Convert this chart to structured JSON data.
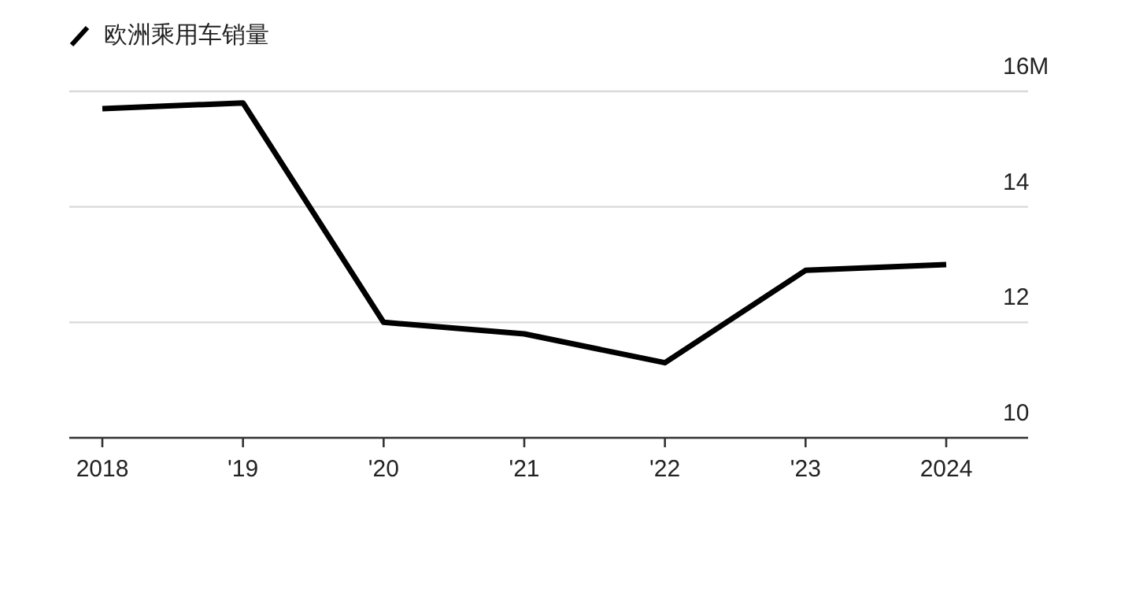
{
  "chart_data": {
    "type": "line",
    "categories": [
      "2018",
      "'19",
      "'20",
      "'21",
      "'22",
      "'23",
      "2024"
    ],
    "series": [
      {
        "name": "欧洲乘用车销量",
        "color": "#000000",
        "values": [
          15.7,
          15.8,
          12.0,
          11.8,
          11.3,
          12.9,
          13.0
        ]
      }
    ],
    "ylim": [
      10,
      16
    ],
    "yticks": [
      10,
      12,
      14,
      {
        "value": 16,
        "label": "16M"
      }
    ],
    "grid": "y",
    "legend": "top left",
    "line_style": "solid"
  }
}
